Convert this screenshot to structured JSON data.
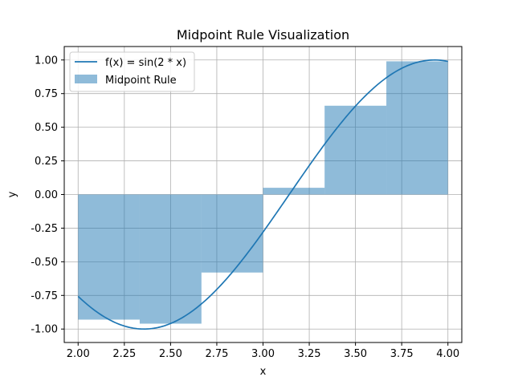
{
  "chart_data": {
    "type": "bar",
    "title": "Midpoint Rule Visualization",
    "xlabel": "x",
    "ylabel": "y",
    "xlim": [
      1.925,
      4.075
    ],
    "ylim": [
      -1.1,
      1.1
    ],
    "grid": true,
    "legend_position": "top-left",
    "x_ticks": [
      "2.00",
      "2.25",
      "2.50",
      "2.75",
      "3.00",
      "3.25",
      "3.50",
      "3.75",
      "4.00"
    ],
    "y_ticks": [
      "-1.00",
      "-0.75",
      "-0.50",
      "-0.25",
      "0.00",
      "0.25",
      "0.50",
      "0.75",
      "1.00"
    ],
    "curve": {
      "name": "f(x) = sin(2 * x)",
      "function": "sin(2*x)",
      "x_range": [
        2.0,
        4.0
      ],
      "color": "#1f77b4"
    },
    "rectangles": {
      "name": "Midpoint Rule",
      "color": "#1f77b4",
      "opacity": 0.5,
      "bars": [
        {
          "x_start": 2.0,
          "x_end": 2.333,
          "value": -0.93
        },
        {
          "x_start": 2.333,
          "x_end": 2.667,
          "value": -0.96
        },
        {
          "x_start": 2.667,
          "x_end": 3.0,
          "value": -0.58
        },
        {
          "x_start": 3.0,
          "x_end": 3.333,
          "value": 0.05
        },
        {
          "x_start": 3.333,
          "x_end": 3.667,
          "value": 0.66
        },
        {
          "x_start": 3.667,
          "x_end": 4.0,
          "value": 0.99
        }
      ]
    },
    "legend": {
      "curve_label_prefix": "f(x) = sin(2 * x)",
      "rect_label": "Midpoint Rule"
    }
  }
}
